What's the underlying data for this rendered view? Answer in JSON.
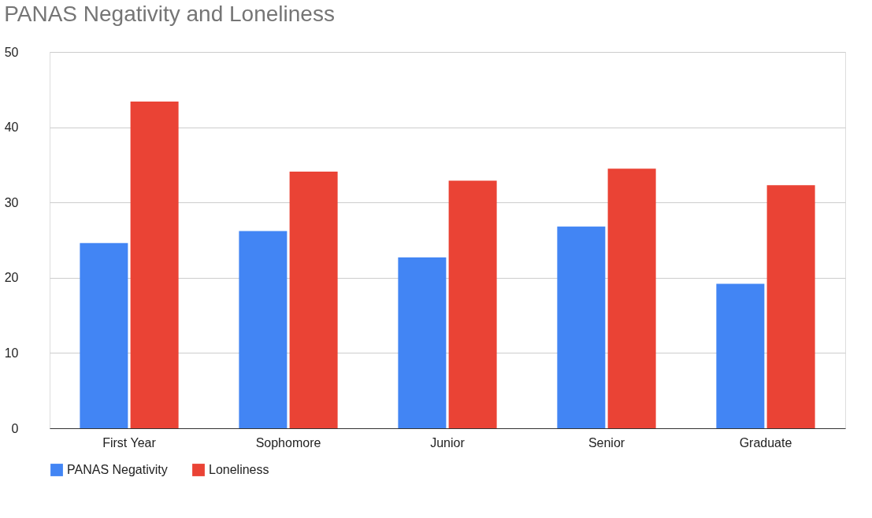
{
  "chart_data": {
    "type": "bar",
    "title": "PANAS Negativity and Loneliness",
    "categories": [
      "First Year",
      "Sophomore",
      "Junior",
      "Senior",
      "Graduate"
    ],
    "series": [
      {
        "name": "PANAS Negativity",
        "color": "#4285f4",
        "values": [
          24.6,
          26.2,
          22.7,
          26.8,
          19.2
        ]
      },
      {
        "name": "Loneliness",
        "color": "#ea4335",
        "values": [
          43.4,
          34.1,
          32.9,
          34.5,
          32.3
        ]
      }
    ],
    "ylim": [
      0,
      50
    ],
    "yticks": [
      0,
      10,
      20,
      30,
      40,
      50
    ],
    "grid": "y",
    "legend": "bottom"
  }
}
